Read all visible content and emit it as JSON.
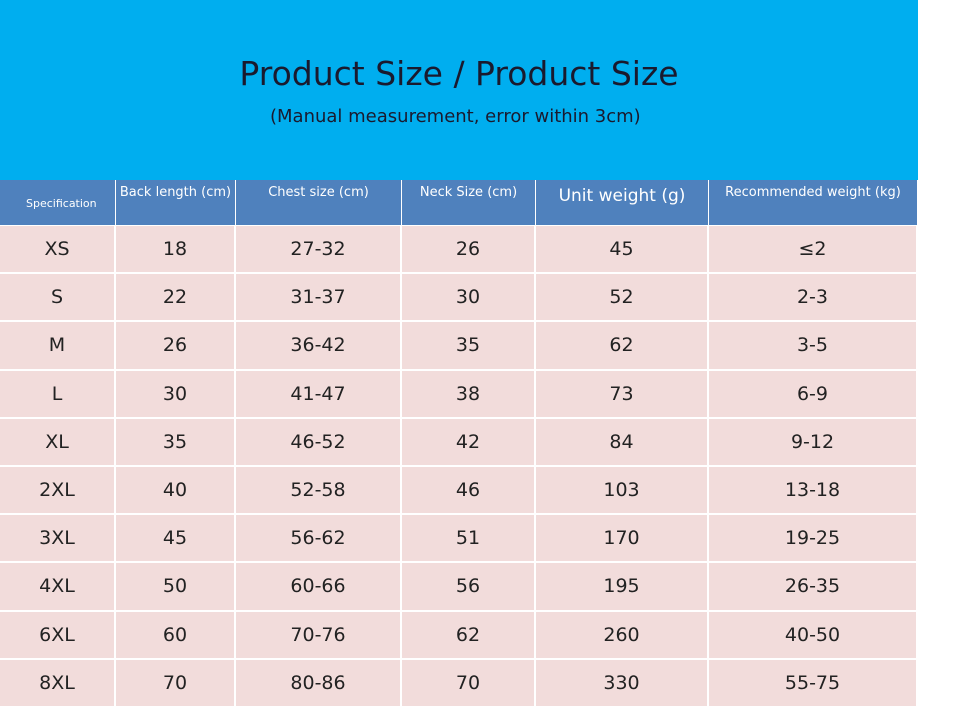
{
  "header": {
    "title": "Product Size / Product Size",
    "subtitle": "(Manual measurement, error within 3cm)"
  },
  "table": {
    "columns": [
      "Specification",
      "Back length (cm)",
      "Chest size (cm)",
      "Neck Size (cm)",
      "Unit weight (g)",
      "Recommended weight (kg)"
    ],
    "rows": [
      [
        "XS",
        "18",
        "27-32",
        "26",
        "45",
        "≤2"
      ],
      [
        "S",
        "22",
        "31-37",
        "30",
        "52",
        "2-3"
      ],
      [
        "M",
        "26",
        "36-42",
        "35",
        "62",
        "3-5"
      ],
      [
        "L",
        "30",
        "41-47",
        "38",
        "73",
        "6-9"
      ],
      [
        "XL",
        "35",
        "46-52",
        "42",
        "84",
        "9-12"
      ],
      [
        "2XL",
        "40",
        "52-58",
        "46",
        "103",
        "13-18"
      ],
      [
        "3XL",
        "45",
        "56-62",
        "51",
        "170",
        "19-25"
      ],
      [
        "4XL",
        "50",
        "60-66",
        "56",
        "195",
        "26-35"
      ],
      [
        "6XL",
        "60",
        "70-76",
        "62",
        "260",
        "40-50"
      ],
      [
        "8XL",
        "70",
        "80-86",
        "70",
        "330",
        "55-75"
      ]
    ]
  }
}
